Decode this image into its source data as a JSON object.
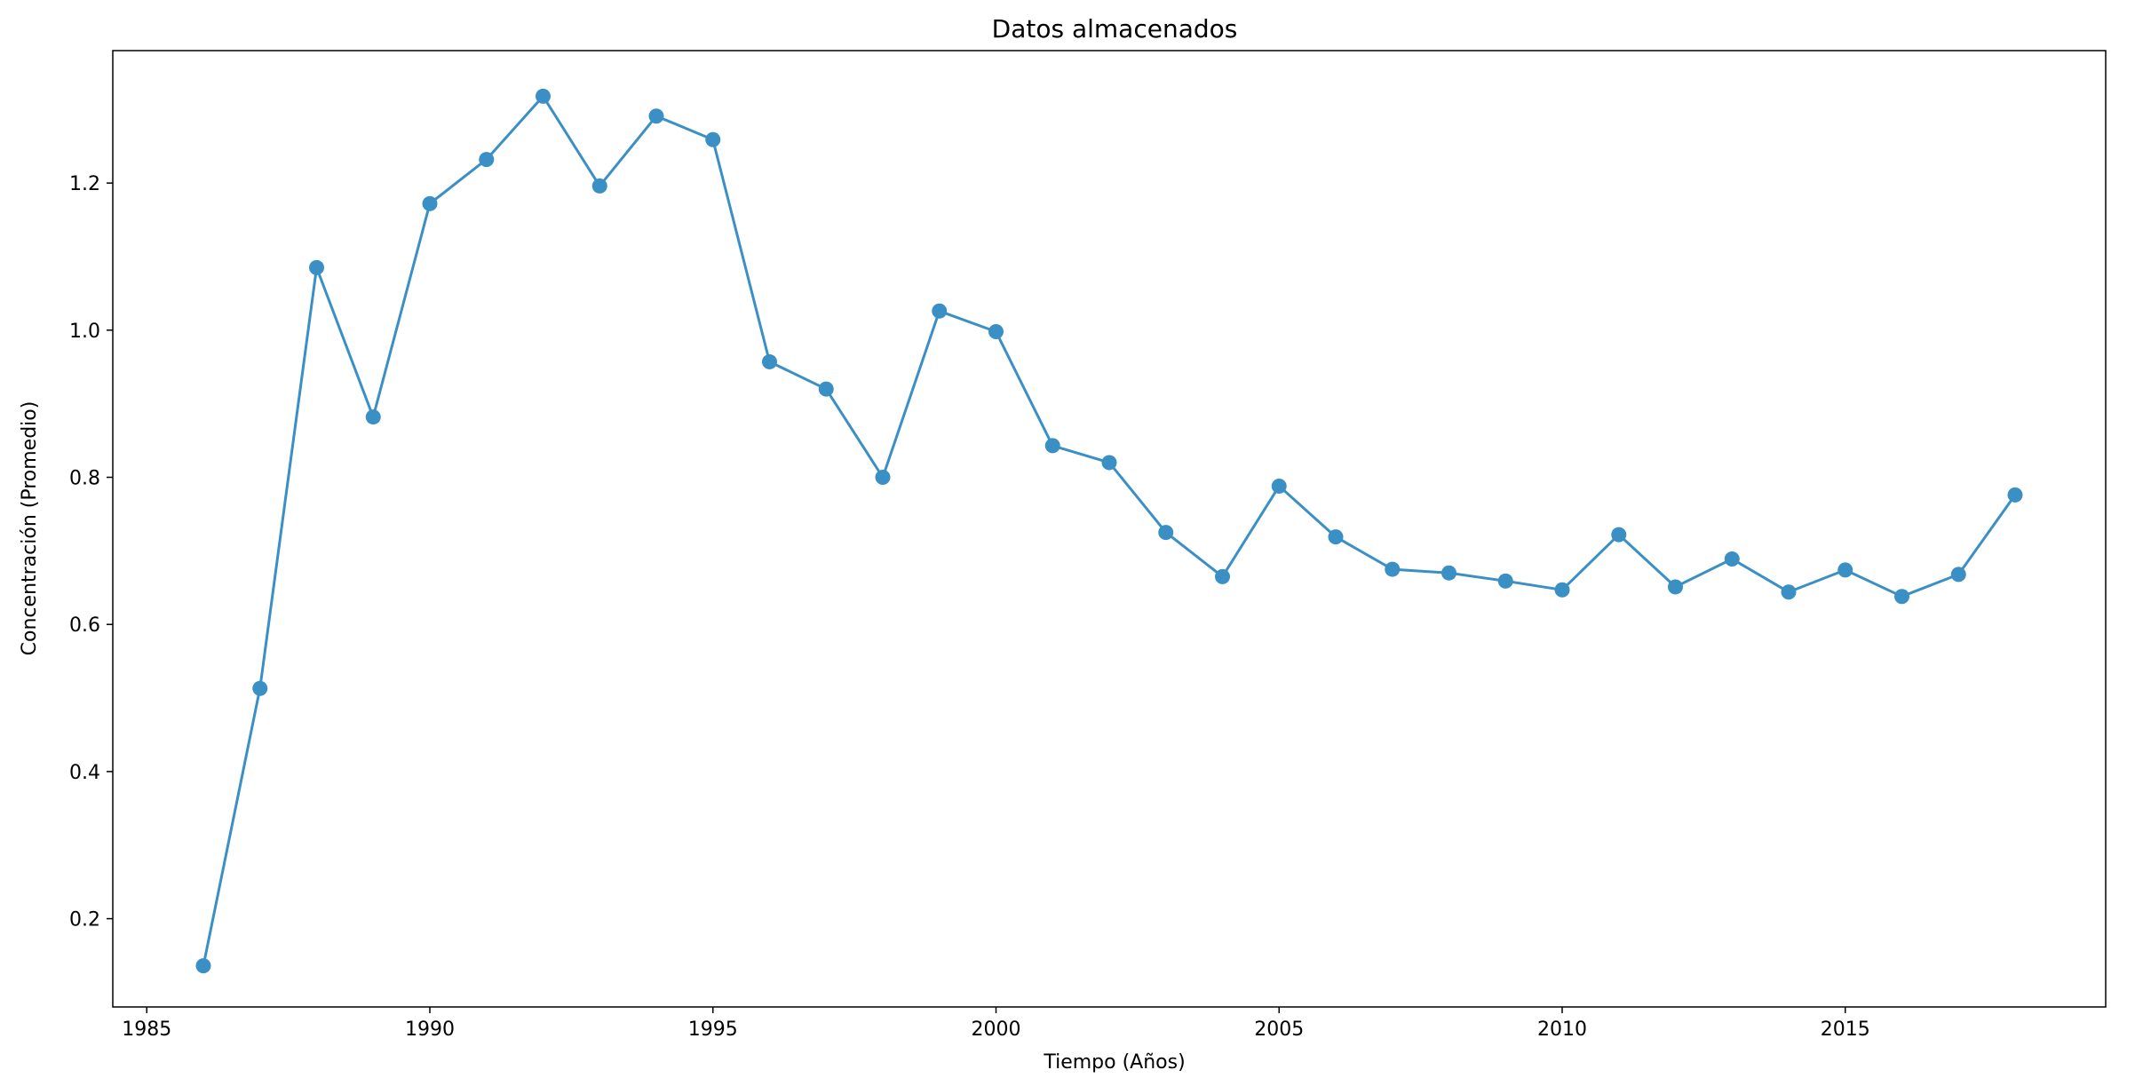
{
  "chart_data": {
    "type": "line",
    "title": "Datos almacenados",
    "xlabel": "Tiempo (Años)",
    "ylabel": "Concentración (Promedio)",
    "xlim": [
      1984.4,
      2019.6
    ],
    "ylim": [
      0.08,
      1.38
    ],
    "xticks": [
      1985,
      1990,
      1995,
      2000,
      2005,
      2010,
      2015
    ],
    "yticks": [
      0.2,
      0.4,
      0.6,
      0.8,
      1.0,
      1.2
    ],
    "xtick_labels": [
      "1985",
      "1990",
      "1995",
      "2000",
      "2005",
      "2010",
      "2015"
    ],
    "ytick_labels": [
      "0.2",
      "0.4",
      "0.6",
      "0.8",
      "1.0",
      "1.2"
    ],
    "grid": false,
    "series": [
      {
        "color": "#3a8fc5",
        "marker": "circle",
        "x": [
          1986,
          1987,
          1988,
          1989,
          1990,
          1991,
          1992,
          1993,
          1994,
          1995,
          1996,
          1997,
          1998,
          1999,
          2000,
          2001,
          2002,
          2003,
          2004,
          2005,
          2006,
          2007,
          2008,
          2009,
          2010,
          2011,
          2012,
          2013,
          2014,
          2015,
          2016,
          2017,
          2018
        ],
        "y": [
          0.136,
          0.513,
          1.085,
          0.882,
          1.172,
          1.232,
          1.318,
          1.196,
          1.291,
          1.259,
          0.957,
          0.92,
          0.8,
          1.026,
          0.998,
          0.843,
          0.82,
          0.725,
          0.665,
          0.788,
          0.719,
          0.675,
          0.67,
          0.659,
          0.647,
          0.722,
          0.651,
          0.689,
          0.644,
          0.674,
          0.638,
          0.668,
          0.776
        ]
      }
    ]
  }
}
